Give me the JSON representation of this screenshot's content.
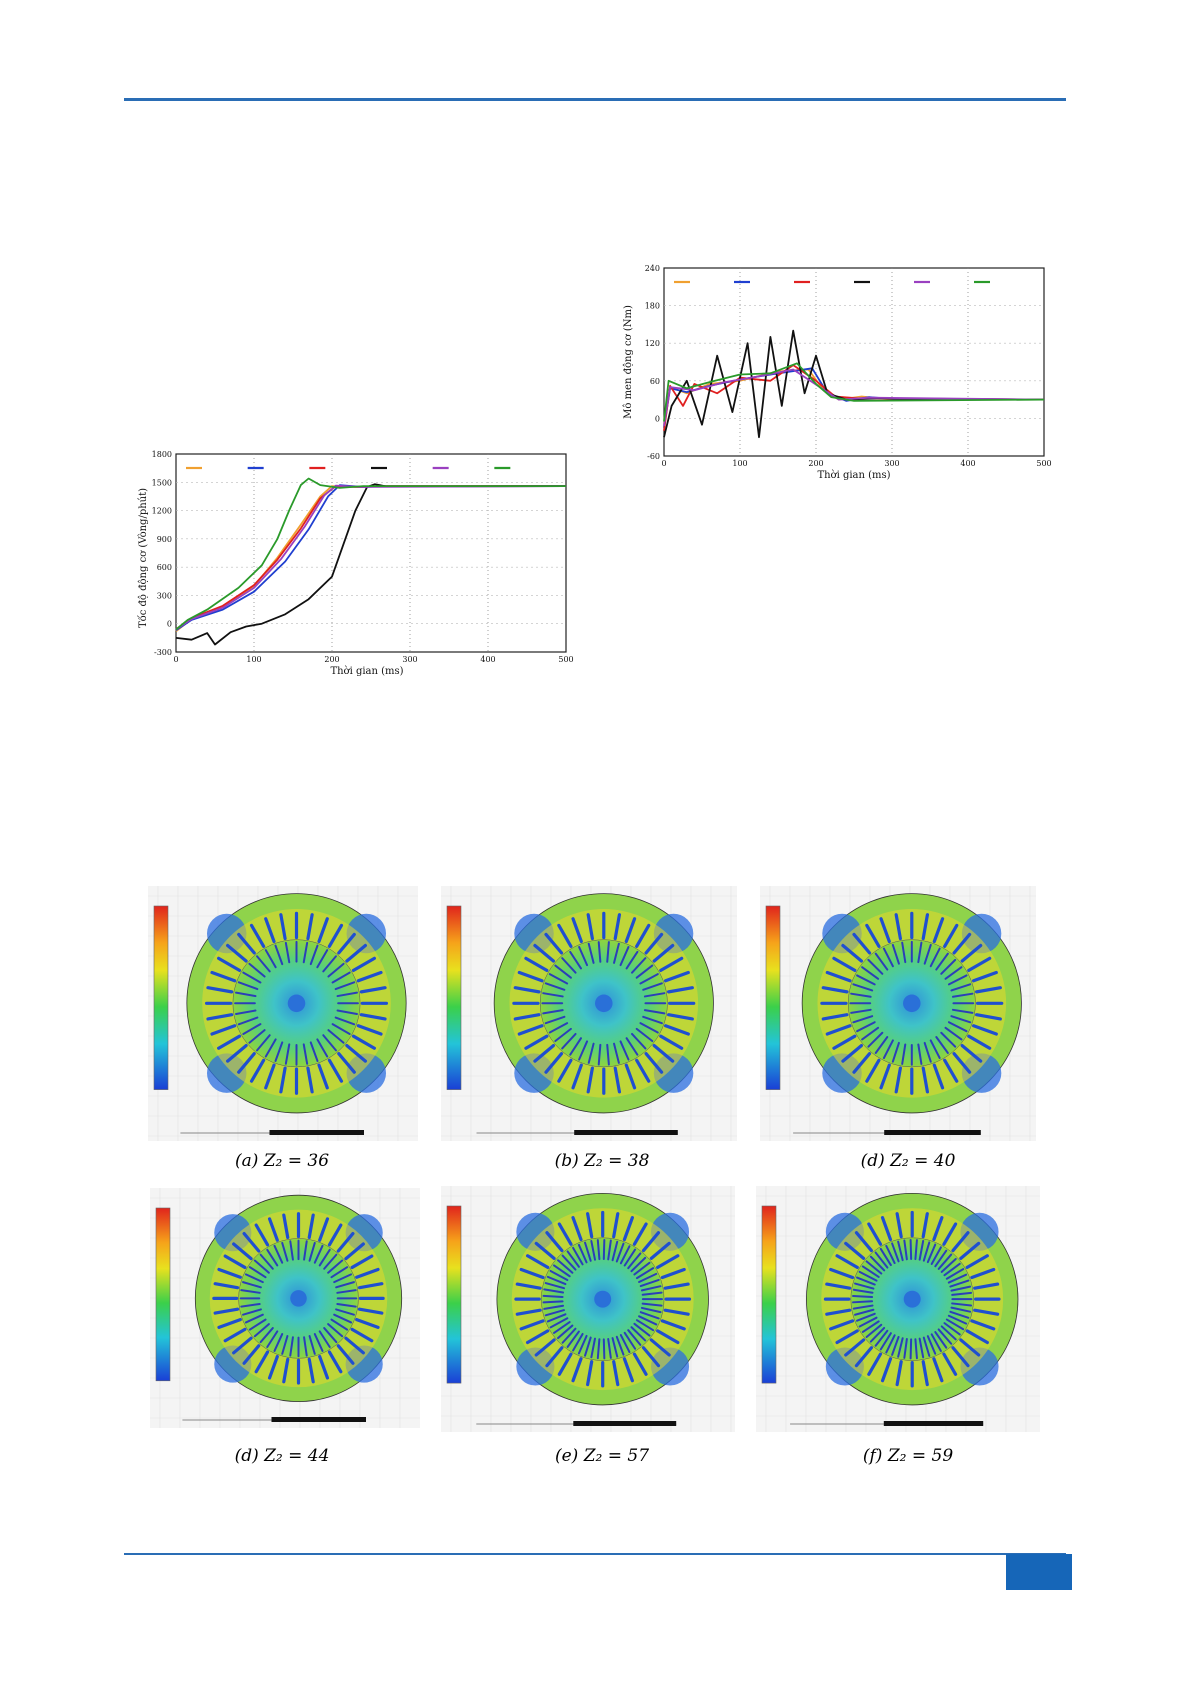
{
  "header": {
    "rule_color": "#2a6db5"
  },
  "footer": {
    "tab_color": "#1666b8"
  },
  "speed_chart": {
    "chart_data": {
      "type": "line",
      "xlabel": "Thời gian (ms)",
      "ylabel": "Tốc độ động cơ (Vòng/phút)",
      "xlim": [
        0,
        500
      ],
      "ylim": [
        -300,
        1800
      ],
      "xticks": [
        "0",
        "100",
        "200",
        "300",
        "400",
        "500"
      ],
      "yticks": [
        "-300",
        "0",
        "300",
        "600",
        "900",
        "1200",
        "1500",
        "1800"
      ],
      "grid": true,
      "legend": "top",
      "series": [
        {
          "color": "#f0a030",
          "values": [
            [
              0,
              -80
            ],
            [
              20,
              50
            ],
            [
              60,
              180
            ],
            [
              100,
              400
            ],
            [
              130,
              700
            ],
            [
              160,
              1050
            ],
            [
              185,
              1350
            ],
            [
              200,
              1460
            ],
            [
              230,
              1450
            ],
            [
              260,
              1460
            ],
            [
              500,
              1460
            ]
          ]
        },
        {
          "color": "#1f3fd0",
          "values": [
            [
              0,
              -70
            ],
            [
              20,
              40
            ],
            [
              60,
              150
            ],
            [
              100,
              340
            ],
            [
              140,
              660
            ],
            [
              170,
              1000
            ],
            [
              195,
              1350
            ],
            [
              210,
              1470
            ],
            [
              240,
              1450
            ],
            [
              270,
              1460
            ],
            [
              500,
              1460
            ]
          ]
        },
        {
          "color": "#e02020",
          "values": [
            [
              0,
              -60
            ],
            [
              20,
              60
            ],
            [
              60,
              190
            ],
            [
              100,
              410
            ],
            [
              130,
              680
            ],
            [
              160,
              1010
            ],
            [
              185,
              1330
            ],
            [
              205,
              1460
            ],
            [
              235,
              1450
            ],
            [
              265,
              1460
            ],
            [
              500,
              1460
            ]
          ]
        },
        {
          "color": "#111111",
          "values": [
            [
              0,
              -150
            ],
            [
              20,
              -170
            ],
            [
              40,
              -100
            ],
            [
              50,
              -220
            ],
            [
              70,
              -90
            ],
            [
              90,
              -30
            ],
            [
              110,
              0
            ],
            [
              140,
              100
            ],
            [
              170,
              260
            ],
            [
              200,
              500
            ],
            [
              215,
              850
            ],
            [
              230,
              1200
            ],
            [
              245,
              1450
            ],
            [
              255,
              1480
            ],
            [
              270,
              1455
            ],
            [
              500,
              1460
            ]
          ]
        },
        {
          "color": "#9a40c0",
          "values": [
            [
              0,
              -60
            ],
            [
              20,
              50
            ],
            [
              60,
              170
            ],
            [
              100,
              380
            ],
            [
              135,
              690
            ],
            [
              165,
              1030
            ],
            [
              190,
              1360
            ],
            [
              205,
              1465
            ],
            [
              235,
              1450
            ],
            [
              500,
              1460
            ]
          ]
        },
        {
          "color": "#2a9a2a",
          "values": [
            [
              0,
              -60
            ],
            [
              15,
              40
            ],
            [
              40,
              150
            ],
            [
              80,
              380
            ],
            [
              110,
              620
            ],
            [
              130,
              900
            ],
            [
              145,
              1200
            ],
            [
              160,
              1470
            ],
            [
              170,
              1540
            ],
            [
              185,
              1470
            ],
            [
              210,
              1440
            ],
            [
              240,
              1460
            ],
            [
              500,
              1460
            ]
          ]
        }
      ]
    }
  },
  "torque_chart": {
    "chart_data": {
      "type": "line",
      "xlabel": "Thời gian (ms)",
      "ylabel": "Mô men động cơ (Nm)",
      "xlim": [
        0,
        500
      ],
      "ylim": [
        -60,
        240
      ],
      "xticks": [
        "0",
        "100",
        "200",
        "300",
        "400",
        "500"
      ],
      "yticks": [
        "-60",
        "0",
        "60",
        "120",
        "180",
        "240"
      ],
      "grid": true,
      "legend": "top",
      "series": [
        {
          "color": "#f0a030",
          "values": [
            [
              0,
              -10
            ],
            [
              8,
              50
            ],
            [
              30,
              40
            ],
            [
              60,
              55
            ],
            [
              100,
              60
            ],
            [
              150,
              75
            ],
            [
              190,
              78
            ],
            [
              210,
              45
            ],
            [
              230,
              30
            ],
            [
              260,
              35
            ],
            [
              300,
              30
            ],
            [
              500,
              30
            ]
          ]
        },
        {
          "color": "#1f3fd0",
          "values": [
            [
              0,
              -15
            ],
            [
              8,
              48
            ],
            [
              30,
              42
            ],
            [
              60,
              52
            ],
            [
              100,
              62
            ],
            [
              150,
              72
            ],
            [
              195,
              80
            ],
            [
              215,
              40
            ],
            [
              240,
              28
            ],
            [
              270,
              34
            ],
            [
              310,
              30
            ],
            [
              500,
              30
            ]
          ]
        },
        {
          "color": "#e02020",
          "values": [
            [
              0,
              -20
            ],
            [
              8,
              52
            ],
            [
              25,
              20
            ],
            [
              40,
              55
            ],
            [
              70,
              40
            ],
            [
              100,
              65
            ],
            [
              140,
              60
            ],
            [
              170,
              85
            ],
            [
              200,
              60
            ],
            [
              225,
              35
            ],
            [
              255,
              32
            ],
            [
              500,
              30
            ]
          ]
        },
        {
          "color": "#111111",
          "values": [
            [
              0,
              -30
            ],
            [
              10,
              20
            ],
            [
              30,
              60
            ],
            [
              50,
              -10
            ],
            [
              70,
              100
            ],
            [
              90,
              10
            ],
            [
              110,
              120
            ],
            [
              125,
              -30
            ],
            [
              140,
              130
            ],
            [
              155,
              20
            ],
            [
              170,
              140
            ],
            [
              185,
              40
            ],
            [
              200,
              100
            ],
            [
              215,
              40
            ],
            [
              240,
              30
            ],
            [
              280,
              32
            ],
            [
              500,
              30
            ]
          ]
        },
        {
          "color": "#9a40c0",
          "values": [
            [
              0,
              -12
            ],
            [
              8,
              50
            ],
            [
              40,
              45
            ],
            [
              80,
              58
            ],
            [
              120,
              66
            ],
            [
              170,
              78
            ],
            [
              205,
              50
            ],
            [
              230,
              30
            ],
            [
              270,
              33
            ],
            [
              500,
              30
            ]
          ]
        },
        {
          "color": "#2a9a2a",
          "values": [
            [
              0,
              -5
            ],
            [
              6,
              60
            ],
            [
              30,
              48
            ],
            [
              60,
              58
            ],
            [
              100,
              70
            ],
            [
              140,
              72
            ],
            [
              175,
              88
            ],
            [
              200,
              55
            ],
            [
              220,
              34
            ],
            [
              250,
              28
            ],
            [
              500,
              30
            ]
          ]
        }
      ]
    }
  },
  "flux_figures": [
    {
      "letter": "a",
      "z": "36",
      "caption": "(a) Z₂ = 36",
      "slots": 36
    },
    {
      "letter": "b",
      "z": "38",
      "caption": "(b) Z₂ = 38",
      "slots": 38
    },
    {
      "letter": "d",
      "z": "40",
      "caption": "(d) Z₂ = 40",
      "slots": 40
    },
    {
      "letter": "d",
      "z": "44",
      "caption": "(d) Z₂ = 44",
      "slots": 44
    },
    {
      "letter": "e",
      "z": "57",
      "caption": "(e) Z₂ = 57",
      "slots": 57
    },
    {
      "letter": "f",
      "z": "59",
      "caption": "(f) Z₂ = 59",
      "slots": 59
    }
  ]
}
